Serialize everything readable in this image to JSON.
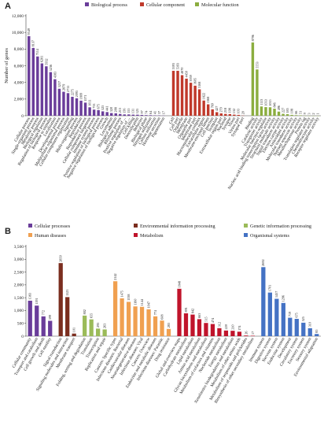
{
  "chart_data": [
    {
      "type": "bar",
      "panel_label": "A",
      "ylabel": "Number of genes",
      "ylim": [
        0,
        12000
      ],
      "yticks": [
        0,
        2000,
        4000,
        6000,
        8000,
        10000,
        12000
      ],
      "legend_position": "top",
      "grid": false,
      "series": [
        {
          "name": "Biological process",
          "color": "#6a3d9a",
          "categories": [
            "Cellular process",
            "Single-organism process",
            "Metabolic process",
            "Biological regulation",
            "Regulation of biological process",
            "Response to stimulus",
            "Localization",
            "Developmental process",
            "Multicellular organismal process",
            "Cellular component organization",
            "Signaling",
            "Multi-organism process",
            "Reproduction",
            "Reproductive process",
            "Cellular component biogenesis",
            "Immune system process",
            "Positive regulation of biological process",
            "Negative regulation of biological process",
            "Growth",
            "Locomotion",
            "Biological adhesion",
            "Rhythmic process",
            "Positive regulation of ...",
            "Negative regulation of ...",
            "Cell killing",
            "Detoxification",
            "Behavior",
            "Biological phase",
            "Nitrogen utilization",
            "Carbon utilization",
            "Hormone secretion",
            "Pigmentation"
          ],
          "values": [
            9549,
            8137,
            7114,
            6281,
            5932,
            5236,
            4383,
            3237,
            2879,
            2711,
            2275,
            2095,
            1809,
            1571,
            1011,
            733,
            675,
            525,
            441,
            320,
            288,
            213,
            156,
            155,
            131,
            125,
            97,
            74,
            64,
            41,
            37,
            17
          ]
        },
        {
          "name": "Cellular component",
          "color": "#c0392b",
          "categories": [
            "Cell",
            "Cell part",
            "Organelle",
            "Membrane",
            "Organelle part",
            "Membrane part",
            "Macromolecular complex",
            "Extracellular region",
            "Membrane-enclosed lumen",
            "Cell junction",
            "Symplast",
            "Extracellular region part",
            "Nucleoid",
            "Synapse",
            "Virion",
            "Virion part",
            "Synapse part"
          ],
          "values": [
            5393,
            5393,
            4870,
            4450,
            3959,
            3605,
            3168,
            1822,
            1368,
            769,
            427,
            279,
            218,
            198,
            132,
            103,
            20
          ]
        },
        {
          "name": "Molecular function",
          "color": "#8bad3f",
          "categories": [
            "Binding",
            "Catalytic activity",
            "Transporter activity",
            "Molecular function regulator",
            "Nucleic acid binding transcription factor activity",
            "Structural molecule activity",
            "Signal transducer activity",
            "Electron carrier activity",
            "Antioxidant activity",
            "Molecular transducer activity",
            "Nutrient reservoir activity",
            "Metallochaperone activity",
            "Protein tag",
            "Translation regulator activity",
            "Chemoattractant activity",
            "Receptor regulator activity"
          ],
          "values": [
            8796,
            5553,
            1113,
            1033,
            1015,
            846,
            496,
            227,
            185,
            108,
            66,
            51,
            9,
            3,
            2,
            1
          ]
        }
      ]
    },
    {
      "type": "bar",
      "panel_label": "B",
      "ylabel": "",
      "ylim": [
        0,
        3500
      ],
      "yticks": [
        0,
        500,
        1000,
        1500,
        2000,
        2500,
        3000,
        3500
      ],
      "legend_position": "top",
      "grid": false,
      "series": [
        {
          "name": "Cellular processes",
          "color": "#6a3d9a",
          "categories": [
            "Cellular community",
            "Transport and catabolism",
            "Cell growth and death",
            "Cell motility"
          ],
          "values": [
            1383,
            1191,
            772,
            599
          ]
        },
        {
          "name": "Environmental information processing",
          "color": "#7b2e1f",
          "categories": [
            "Signal transduction",
            "Signaling molecules and interaction",
            "Membrane transport"
          ],
          "values": [
            2850,
            1523,
            101
          ]
        },
        {
          "name": "Genetic information processing",
          "color": "#9bbb59",
          "categories": [
            "Folding, sorting and degradation",
            "Translation",
            "Transcription",
            "Replication and repair"
          ],
          "values": [
            802,
            655,
            295,
            263
          ]
        },
        {
          "name": "Human diseases",
          "color": "#f0a050",
          "categories": [
            "Cancers: Specific types",
            "Infectious diseases: Bacterial",
            "Cardiovascular diseases",
            "Neurodegenerative diseases",
            "Infectious diseases: Viral",
            "Cancers: Overview",
            "Endocrine and metabolic diseases",
            "Infectious diseases: Parasitic",
            "Drug resistance"
          ],
          "values": [
            2142,
            1475,
            1338,
            1160,
            1144,
            1047,
            774,
            608,
            283
          ]
        },
        {
          "name": "Metabolism",
          "color": "#c0142b",
          "categories": [
            "Global and overview maps",
            "Carbohydrate metabolism",
            "Lipid metabolism",
            "Amino acid metabolism",
            "Glycan biosynthesis and metabolism",
            "Metabolism of cofactors and vitamins",
            "Nucleotide metabolism",
            "Energy metabolism",
            "Xenobiotics biodegradation and metabolism",
            "Metabolism of other amino acids",
            "Metabolism of terpenoids and polyketides",
            "Biosynthesis of other secondary metabolites"
          ],
          "values": [
            1848,
            891,
            842,
            663,
            515,
            474,
            312,
            220,
            210,
            174,
            26,
            17
          ]
        },
        {
          "name": "Organismal systems",
          "color": "#4472c4",
          "categories": [
            "Immune system",
            "Digestive system",
            "Nervous system",
            "Endocrine system",
            "Development",
            "Circulatory system",
            "Excretory system",
            "Sensory system",
            "Environmental adaptation"
          ],
          "values": [
            2692,
            1701,
            1457,
            1296,
            719,
            675,
            525,
            310,
            85
          ]
        }
      ]
    }
  ]
}
